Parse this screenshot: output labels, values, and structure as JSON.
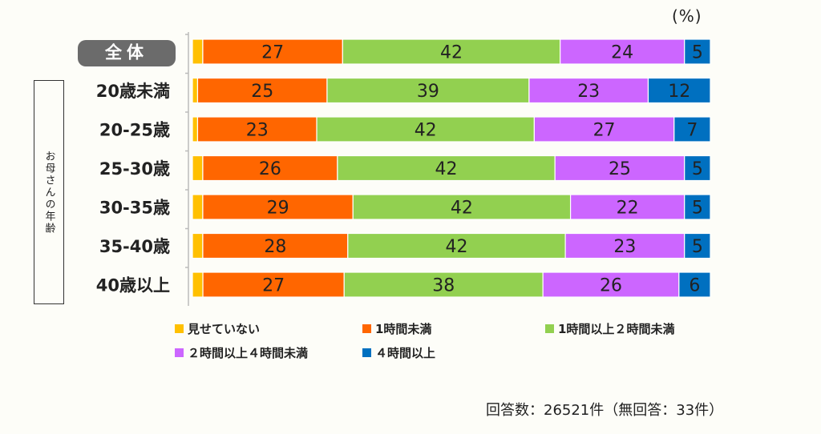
{
  "unit_label": "(%)",
  "vertical_label": "お母さんの年齢",
  "note": "回答数：26521件（無回答：33件）",
  "colors": {
    "none": "#ffc000",
    "lt1h": "#ff6600",
    "1to2h": "#92d050",
    "2to4h": "#cc66ff",
    "ge4h": "#0070c0"
  },
  "chart_data": {
    "type": "bar",
    "orientation": "horizontal",
    "stacked": true,
    "unit": "%",
    "xlim": [
      0,
      100
    ],
    "categories": [
      "全体",
      "20歳未満",
      "20-25歳",
      "25-30歳",
      "30-35歳",
      "35-40歳",
      "40歳以上"
    ],
    "highlighted_category": "全体",
    "series": [
      {
        "name": "見せていない",
        "color_key": "none",
        "values": [
          2,
          1,
          1,
          2,
          2,
          2,
          2
        ],
        "show_labels": false
      },
      {
        "name": "1時間未満",
        "color_key": "lt1h",
        "values": [
          27,
          25,
          23,
          26,
          29,
          28,
          27
        ],
        "show_labels": true
      },
      {
        "name": "1時間以上２時間未満",
        "color_key": "1to2h",
        "values": [
          42,
          39,
          42,
          42,
          42,
          42,
          38
        ],
        "show_labels": true
      },
      {
        "name": "２時間以上４時間未満",
        "color_key": "2to4h",
        "values": [
          24,
          23,
          27,
          25,
          22,
          23,
          26
        ],
        "show_labels": true
      },
      {
        "name": "４時間以上",
        "color_key": "ge4h",
        "values": [
          5,
          12,
          7,
          5,
          5,
          5,
          6
        ],
        "show_labels": true
      }
    ],
    "legend_position": "bottom"
  }
}
